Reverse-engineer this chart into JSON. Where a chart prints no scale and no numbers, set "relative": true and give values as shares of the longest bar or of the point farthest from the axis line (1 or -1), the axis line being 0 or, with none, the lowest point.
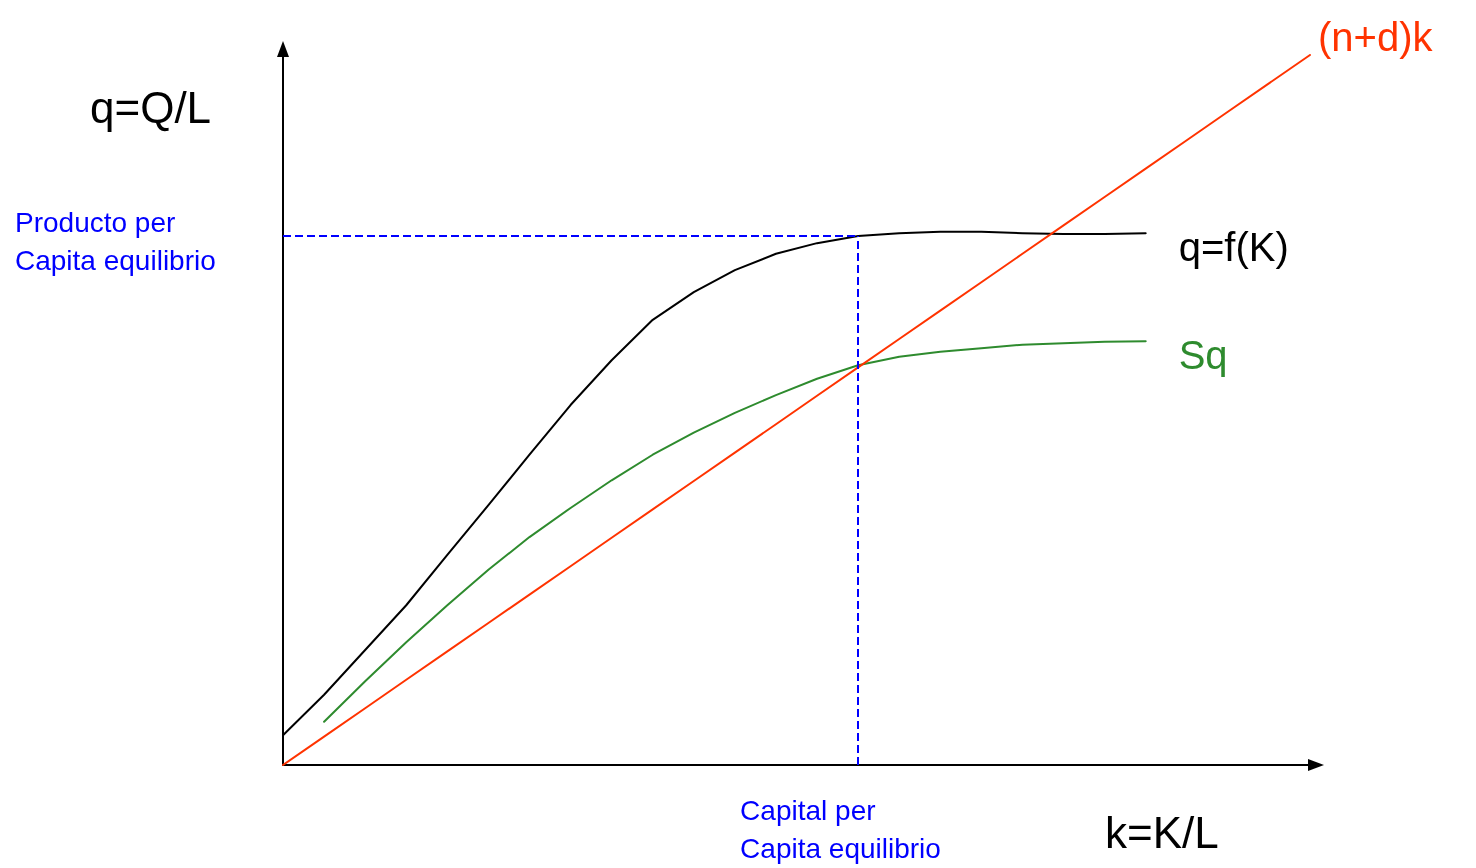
{
  "chart_data": {
    "type": "line",
    "relative": true,
    "xlabel": "k=K/L",
    "ylabel": "q=Q/L",
    "grid": false,
    "legend": false,
    "marker": "none",
    "categories": [
      null,
      null,
      null,
      null,
      null,
      null,
      null,
      null,
      null,
      null,
      null,
      null,
      null,
      null,
      null,
      null,
      null,
      null,
      null,
      null,
      null,
      null,
      null,
      null,
      null,
      null
    ],
    "series": [
      {
        "name": "q=f(K)",
        "color": "#000000",
        "values": [
          0.042,
          0.099,
          0.162,
          0.225,
          0.296,
          0.366,
          0.437,
          0.507,
          0.57,
          0.627,
          0.666,
          0.697,
          0.72,
          0.735,
          0.745,
          0.749,
          0.751,
          0.751,
          0.749,
          0.748,
          0.748,
          0.749,
          null,
          null,
          null,
          null
        ]
      },
      {
        "name": "Sq",
        "color": "#2e8b2e",
        "values": [
          null,
          0.061,
          0.118,
          0.173,
          0.225,
          0.275,
          0.321,
          0.362,
          0.401,
          0.437,
          0.468,
          0.496,
          0.521,
          0.544,
          0.563,
          0.575,
          0.582,
          0.587,
          0.592,
          0.594,
          0.596,
          0.597,
          null,
          null,
          null,
          null
        ]
      },
      {
        "name": "(n+d)k",
        "color": "#ff3300",
        "values": [
          0,
          0.04,
          0.08,
          0.12,
          0.16,
          0.2,
          0.24,
          0.28,
          0.32,
          0.36,
          0.4,
          0.44,
          0.48,
          0.52,
          0.56,
          0.6,
          0.64,
          0.68,
          0.72,
          0.76,
          0.8,
          0.84,
          0.88,
          0.92,
          0.96,
          1
        ]
      }
    ],
    "ref_lines": [
      {
        "axis": "y",
        "value": 0.745,
        "label": "Producto per Capita equilibrio",
        "color": "#0000ff",
        "line_style": "dashed"
      },
      {
        "axis": "x",
        "label": "Capital per Capita equilibrio",
        "color": "#0000ff",
        "line_style": "dashed"
      }
    ]
  }
}
